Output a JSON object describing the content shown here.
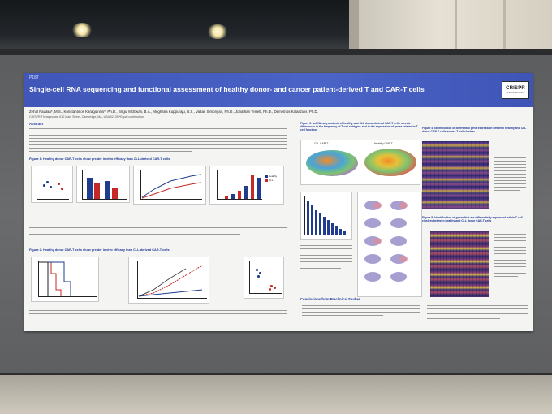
{
  "poster": {
    "id": "P187",
    "title": "Single-cell RNA sequencing and functional assessment of healthy donor- and cancer patient-derived T and CAR-T cells",
    "authors": "Zehal Padalia*, M.S., Konstantinos Karagiannis*, Ph.D., Brigid McEwan, B.A., Meghana Kuppuraju, B.S., Vahan Simonyan, Ph.D., Jonathan Terrett, Ph.D., Demetrios Kalaitzidis, Ph.D.",
    "affiliation": "CRISPR Therapeutics, 610 Main Street, Cambridge, MA, USA 02139   *Equal contribution",
    "logo": {
      "main": "CRISPR",
      "sub": "THERAPEUTICS"
    },
    "sections": {
      "abstract": "Abstract",
      "fig1": "Figure 1: Healthy donor CAR-T cells show greater in vitro efficacy than CLL-derived CAR-T cells",
      "fig2": "Figure 2: Healthy donor CAR-T cells show greater in vivo efficacy than CLL-derived CAR-T cells",
      "fig3": "Figure 3: scRNA-seq analysis of healthy and CLL donor-derived CAR-T cells reveals differences in the frequency of T cell subtypes and in the expression of genes related to T cell function",
      "fig4": "Figure 4: Identification of differential gene expression between healthy and CLL donor CAR-T cells across T cell clusters",
      "fig5": "Figure 5: Identification of genes that are differentially expressed within T cell clusters between healthy and CLL donor CAR-T cells",
      "conclusions": "Conclusions from Preclinical Studies"
    },
    "umap_labels": {
      "left": "CLL CAR-T",
      "right": "Healthy CAR-T"
    },
    "legend": {
      "healthy": "Healthy",
      "cll": "CLL"
    }
  },
  "colors": {
    "header_blue": "#4a63c6",
    "healthy": "#1f3c8f",
    "cll": "#c62828",
    "heatmap_low": "#2b2a6e",
    "heatmap_high": "#f2e34a"
  }
}
